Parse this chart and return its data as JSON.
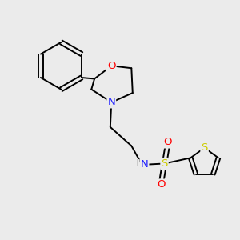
{
  "background_color": "#ebebeb",
  "atom_colors": {
    "C": "#000000",
    "N": "#2020FF",
    "O": "#FF0000",
    "S_sulfonyl": "#cccc00",
    "S_thiophene": "#cccc00",
    "H": "#666666"
  },
  "bond_color": "#000000",
  "bond_width": 1.4,
  "font_size_atom": 8.5,
  "figsize": [
    3.0,
    3.0
  ],
  "dpi": 100,
  "xlim": [
    0,
    10
  ],
  "ylim": [
    0,
    10
  ]
}
